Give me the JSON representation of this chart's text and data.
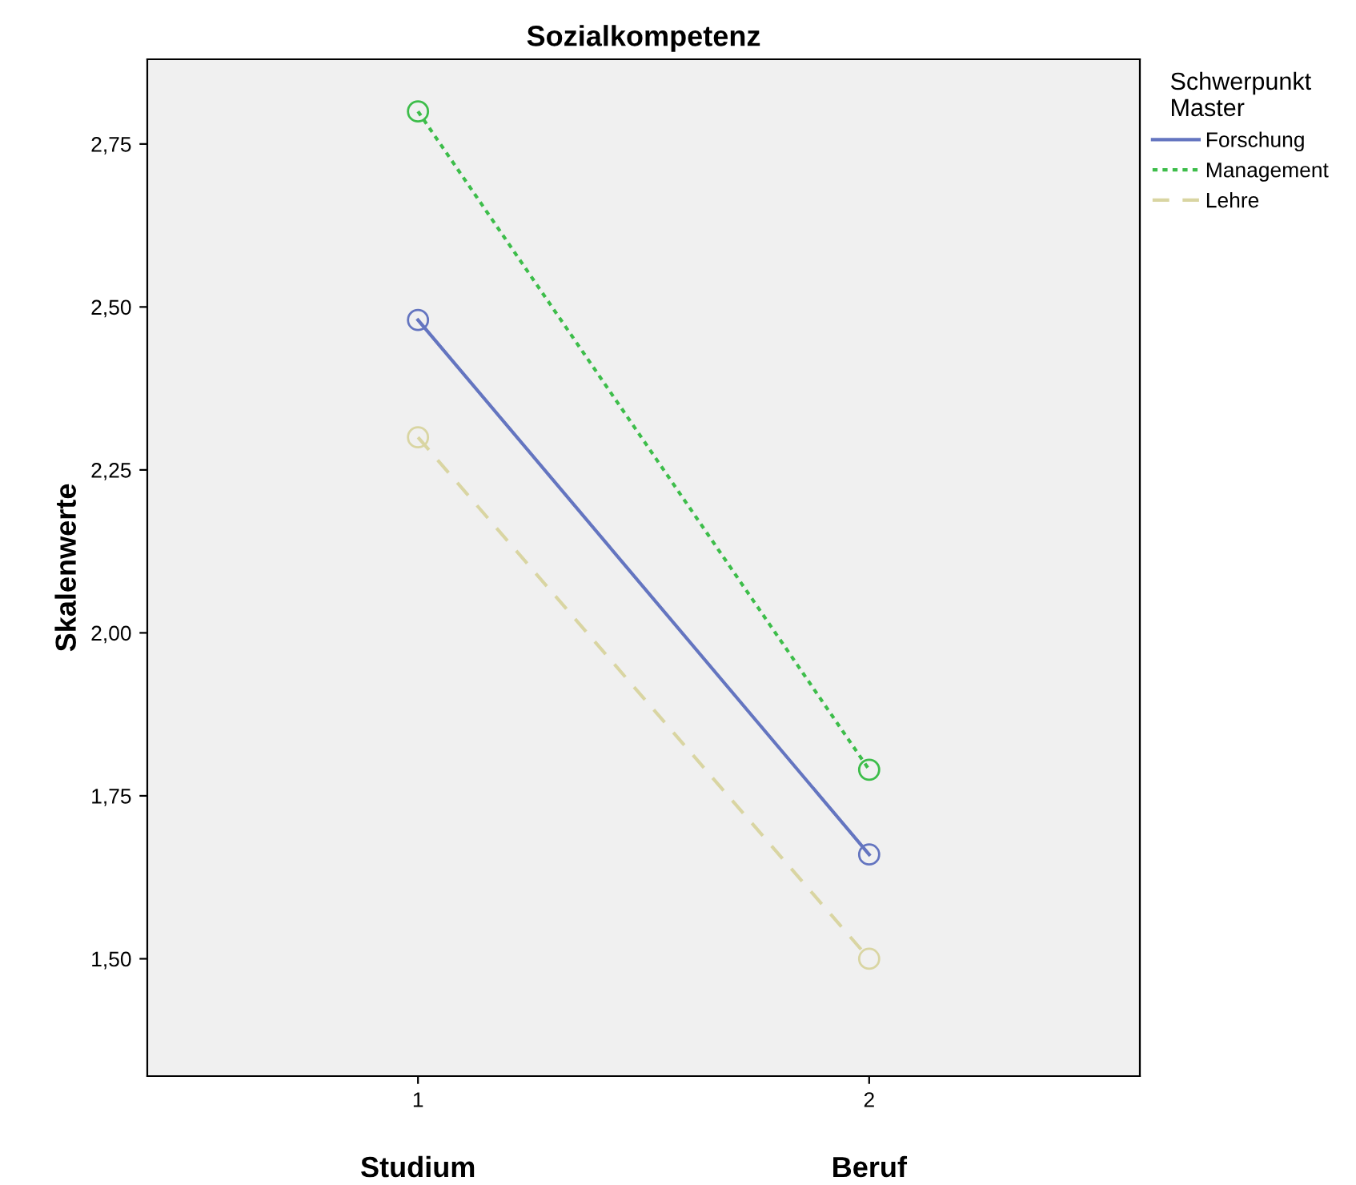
{
  "chart_data": {
    "type": "line",
    "title": "Sozialkompetenz",
    "ylabel": "Skalenwerte",
    "legend_title": "Schwerpunkt\nMaster",
    "categories": [
      "1",
      "2"
    ],
    "series": [
      {
        "name": "Forschung",
        "color": "#6475c0",
        "values": [
          2.48,
          1.66
        ],
        "line_style": "solid"
      },
      {
        "name": "Management",
        "color": "#3dbd4a",
        "values": [
          2.8,
          1.79
        ],
        "line_style": "dotted"
      },
      {
        "name": "Lehre",
        "color": "#d9d5a2",
        "values": [
          2.3,
          1.5
        ],
        "line_style": "dashed"
      }
    ],
    "annotations": [
      "Studium",
      "Beruf"
    ],
    "ylim": [
      1.32,
      2.88
    ],
    "yticks": [
      {
        "value": 1.5,
        "label": "1,50"
      },
      {
        "value": 1.75,
        "label": "1,75"
      },
      {
        "value": 2.0,
        "label": "2,00"
      },
      {
        "value": 2.25,
        "label": "2,25"
      },
      {
        "value": 2.5,
        "label": "2,50"
      },
      {
        "value": 2.75,
        "label": "2,75"
      }
    ],
    "marker": "circle",
    "grid": false,
    "legend": "right"
  }
}
